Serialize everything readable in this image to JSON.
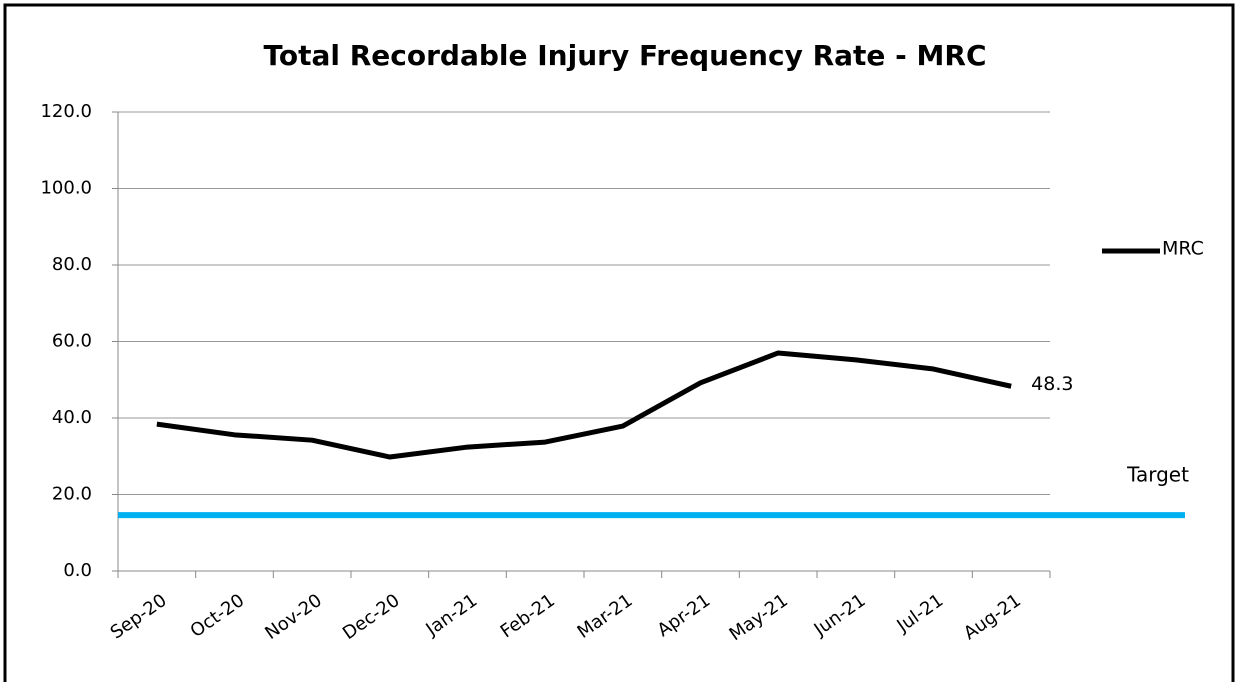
{
  "chart_data": {
    "type": "line",
    "title": "Total Recordable Injury Frequency Rate - MRC",
    "categories": [
      "Sep-20",
      "Oct-20",
      "Nov-20",
      "Dec-20",
      "Jan-21",
      "Feb-21",
      "Mar-21",
      "Apr-21",
      "May-21",
      "Jun-21",
      "Jul-21",
      "Aug-21"
    ],
    "series": [
      {
        "name": "MRC",
        "color": "#000000",
        "values": [
          38.4,
          35.6,
          34.2,
          29.8,
          32.4,
          33.7,
          37.9,
          49.2,
          57.0,
          55.2,
          52.8,
          48.3
        ],
        "value_labels": [
          null,
          null,
          null,
          null,
          null,
          null,
          null,
          null,
          null,
          null,
          null,
          "48.3"
        ]
      }
    ],
    "target": {
      "label": "Target",
      "value": 14.6,
      "color": "#00b0f0"
    },
    "ylim": [
      0,
      120
    ],
    "yticks": [
      {
        "value": 0,
        "label": "0.0"
      },
      {
        "value": 20,
        "label": "20.0"
      },
      {
        "value": 40,
        "label": "40.0"
      },
      {
        "value": 60,
        "label": "60.0"
      },
      {
        "value": 80,
        "label": "80.0"
      },
      {
        "value": 100,
        "label": "100.0"
      },
      {
        "value": 120,
        "label": "120.0"
      }
    ],
    "grid": true,
    "legend": "right"
  }
}
